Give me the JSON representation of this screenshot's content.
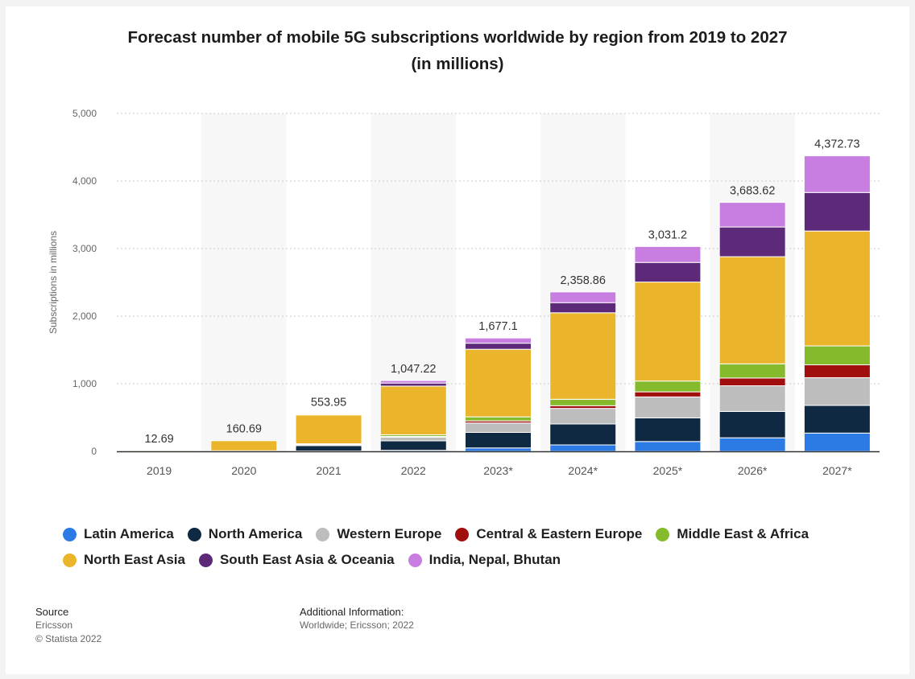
{
  "title_line1": "Forecast number of mobile 5G subscriptions worldwide by region from 2019 to 2027",
  "title_line2": "(in millions)",
  "chart_data": {
    "type": "bar",
    "stacked": true,
    "title": "Forecast number of mobile 5G subscriptions worldwide by region from 2019 to 2027 (in millions)",
    "xlabel": "",
    "ylabel": "Subscriptions in millions",
    "ylim": [
      0,
      5000
    ],
    "yticks": [
      "0",
      "1,000",
      "2,000",
      "3,000",
      "4,000",
      "5,000"
    ],
    "ytick_values": [
      0,
      1000,
      2000,
      3000,
      4000,
      5000
    ],
    "grid": true,
    "legend_position": "bottom",
    "categories": [
      "2019",
      "2020",
      "2021",
      "2022",
      "2023*",
      "2024*",
      "2025*",
      "2026*",
      "2027*"
    ],
    "totals": [
      12.69,
      160.69,
      553.95,
      1047.22,
      1677.1,
      2358.86,
      3031.2,
      3683.62,
      4372.73
    ],
    "total_labels": [
      "12.69",
      "160.69",
      "553.95",
      "1,047.22",
      "1,677.1",
      "2,358.86",
      "3,031.2",
      "3,683.62",
      "4,372.73"
    ],
    "series": [
      {
        "name": "Latin America",
        "color": "#2c7be5",
        "values": [
          0,
          0,
          5,
          15,
          50,
          95,
          145,
          200,
          270
        ]
      },
      {
        "name": "North America",
        "color": "#0f2942",
        "values": [
          0,
          5,
          80,
          140,
          230,
          310,
          350,
          390,
          410
        ]
      },
      {
        "name": "Western Europe",
        "color": "#bdbdbd",
        "values": [
          0,
          2,
          15,
          55,
          140,
          230,
          310,
          380,
          410
        ]
      },
      {
        "name": "Central & Eastern Europe",
        "color": "#a10e0e",
        "values": [
          0,
          0,
          2,
          10,
          30,
          40,
          75,
          115,
          190
        ]
      },
      {
        "name": "Middle East & Africa",
        "color": "#84ba2b",
        "values": [
          0,
          1,
          10,
          25,
          60,
          95,
          160,
          210,
          280
        ]
      },
      {
        "name": "North East Asia",
        "color": "#ebb52b",
        "values": [
          12.69,
          150.69,
          426.95,
          720,
          1000,
          1280,
          1465,
          1585,
          1700
        ]
      },
      {
        "name": "South East Asia & Oceania",
        "color": "#5c2a78",
        "values": [
          0,
          1,
          10,
          45,
          90,
          150,
          290,
          440,
          570
        ]
      },
      {
        "name": "India, Nepal, Bhutan",
        "color": "#c77ee0",
        "values": [
          0,
          1,
          5,
          37.22,
          77.1,
          158.86,
          236.2,
          363.62,
          542.73
        ]
      }
    ]
  },
  "legend_rows": [
    [
      {
        "name": "Latin America",
        "color": "#2c7be5"
      },
      {
        "name": "North America",
        "color": "#0f2942"
      },
      {
        "name": "Western Europe",
        "color": "#bdbdbd"
      },
      {
        "name": "Central & Eastern Europe",
        "color": "#a10e0e"
      },
      {
        "name": "Middle East & Africa",
        "color": "#84ba2b"
      }
    ],
    [
      {
        "name": "North East Asia",
        "color": "#ebb52b"
      },
      {
        "name": "South East Asia & Oceania",
        "color": "#5c2a78"
      },
      {
        "name": "India, Nepal, Bhutan",
        "color": "#c77ee0"
      }
    ]
  ],
  "source": {
    "heading": "Source",
    "line1": "Ericsson",
    "line2": "© Statista 2022"
  },
  "additional_info": {
    "heading": "Additional Information:",
    "line1": "Worldwide; Ericsson; 2022"
  }
}
